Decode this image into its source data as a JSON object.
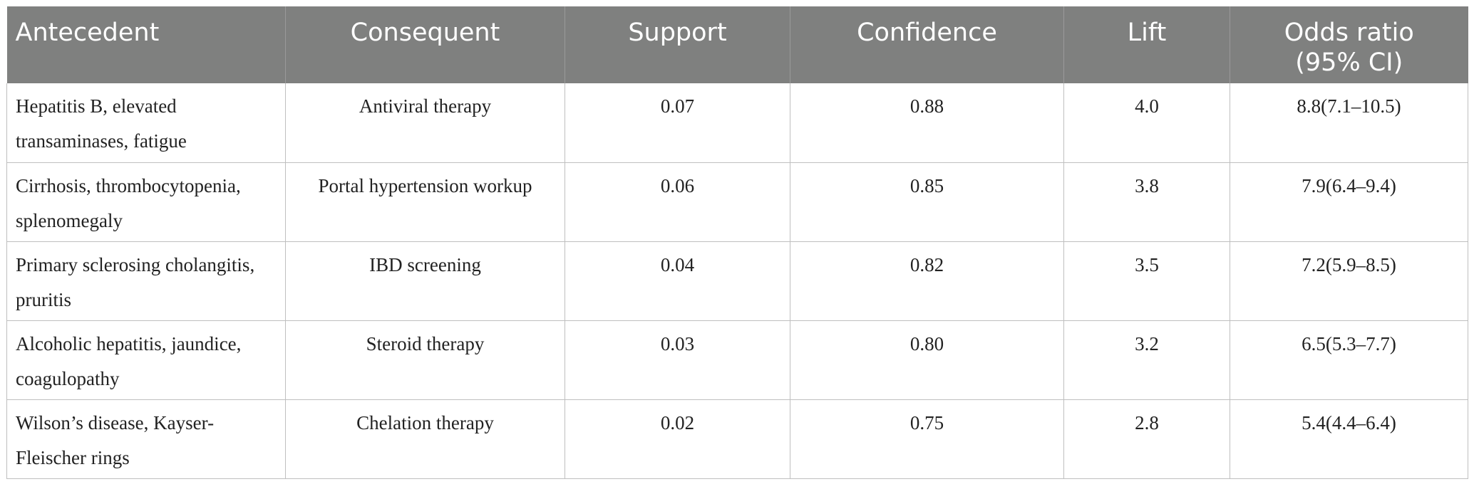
{
  "table": {
    "headers": {
      "antecedent": "Antecedent",
      "consequent": "Consequent",
      "support": "Support",
      "confidence": "Confidence",
      "lift": "Lift",
      "odds_ratio_line1": "Odds ratio",
      "odds_ratio_line2": "(95% CI)"
    },
    "rows": [
      {
        "antecedent_line1": "Hepatitis B, elevated",
        "antecedent_line2": "transaminases, fatigue",
        "consequent": "Antiviral therapy",
        "support": "0.07",
        "confidence": "0.88",
        "lift": "4.0",
        "odds_ratio": "8.8(7.1–10.5)"
      },
      {
        "antecedent_line1": "Cirrhosis, thrombocytopenia,",
        "antecedent_line2": "splenomegaly",
        "consequent": "Portal hypertension workup",
        "support": "0.06",
        "confidence": "0.85",
        "lift": "3.8",
        "odds_ratio": "7.9(6.4–9.4)"
      },
      {
        "antecedent_line1": "Primary sclerosing cholangitis,",
        "antecedent_line2": "pruritis",
        "consequent": "IBD screening",
        "support": "0.04",
        "confidence": "0.82",
        "lift": "3.5",
        "odds_ratio": "7.2(5.9–8.5)"
      },
      {
        "antecedent_line1": "Alcoholic hepatitis, jaundice,",
        "antecedent_line2": "coagulopathy",
        "consequent": "Steroid therapy",
        "support": "0.03",
        "confidence": "0.80",
        "lift": "3.2",
        "odds_ratio": "6.5(5.3–7.7)"
      },
      {
        "antecedent_line1": "Wilson’s disease, Kayser-",
        "antecedent_line2": "Fleischer rings",
        "consequent": "Chelation therapy",
        "support": "0.02",
        "confidence": "0.75",
        "lift": "2.8",
        "odds_ratio": "5.4(4.4–6.4)"
      }
    ]
  }
}
